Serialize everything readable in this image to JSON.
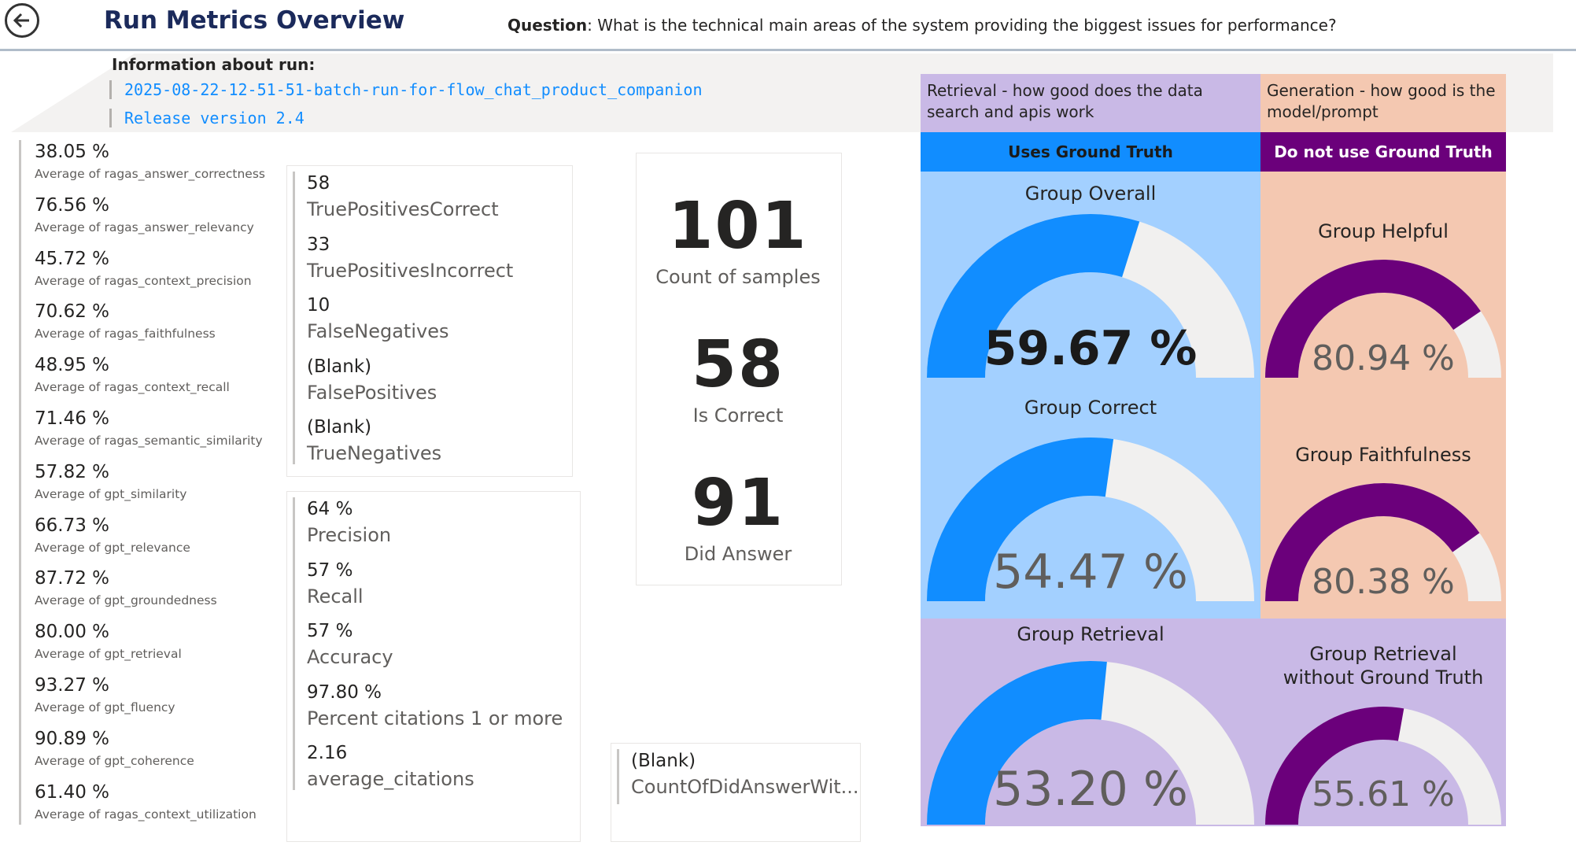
{
  "header": {
    "title": "Run Metrics Overview",
    "question_label": "Question",
    "question_text": ": What is the technical main areas of the system providing the biggest issues for performance?"
  },
  "info": {
    "title": "Information about run:",
    "run_name": "2025-08-22-12-51-51-batch-run-for-flow_chat_product_companion",
    "release": "Release version 2.4"
  },
  "left_metrics": [
    {
      "value": "38.05 %",
      "label": "Average of ragas_answer_correctness"
    },
    {
      "value": "76.56 %",
      "label": "Average of ragas_answer_relevancy"
    },
    {
      "value": "45.72 %",
      "label": "Average of ragas_context_precision"
    },
    {
      "value": "70.62 %",
      "label": "Average of ragas_faithfulness"
    },
    {
      "value": "48.95 %",
      "label": "Average of ragas_context_recall"
    },
    {
      "value": "71.46 %",
      "label": "Average of ragas_semantic_similarity"
    },
    {
      "value": "57.82 %",
      "label": "Average of gpt_similarity"
    },
    {
      "value": "66.73 %",
      "label": "Average of gpt_relevance"
    },
    {
      "value": "87.72 %",
      "label": "Average of gpt_groundedness"
    },
    {
      "value": "80.00 %",
      "label": "Average of gpt_retrieval"
    },
    {
      "value": "93.27 %",
      "label": "Average of gpt_fluency"
    },
    {
      "value": "90.89 %",
      "label": "Average of gpt_coherence"
    },
    {
      "value": "61.40 %",
      "label": "Average of ragas_context_utilization"
    }
  ],
  "confusion": [
    {
      "value": "58",
      "label": "TruePositivesCorrect"
    },
    {
      "value": "33",
      "label": "TruePositivesIncorrect"
    },
    {
      "value": "10",
      "label": "FalseNegatives"
    },
    {
      "value": "(Blank)",
      "label": "FalsePositives"
    },
    {
      "value": "(Blank)",
      "label": "TrueNegatives"
    }
  ],
  "rates": [
    {
      "value": "64 %",
      "label": "Precision"
    },
    {
      "value": "57 %",
      "label": "Recall"
    },
    {
      "value": "57 %",
      "label": "Accuracy"
    },
    {
      "value": "97.80 %",
      "label": "Percent citations 1 or more"
    },
    {
      "value": "2.16",
      "label": "average_citations"
    }
  ],
  "counts": [
    {
      "value": "101",
      "label": "Count of samples"
    },
    {
      "value": "58",
      "label": "Is Correct"
    },
    {
      "value": "91",
      "label": "Did Answer"
    }
  ],
  "blank_card": {
    "value": "(Blank)",
    "label": "CountOfDidAnswerWit..."
  },
  "sections": {
    "retrieval_header": "Retrieval - how good does the data search and apis work",
    "generation_header": "Generation - how good is the model/prompt",
    "uses_gt": "Uses Ground Truth",
    "no_gt": "Do not use Ground Truth"
  },
  "gauges": [
    {
      "title": "Group Overall",
      "value_text": "59.67 %",
      "value": 0.5967
    },
    {
      "title": "Group Helpful",
      "value_text": "80.94 %",
      "value": 0.8094
    },
    {
      "title": "Group Correct",
      "value_text": "54.47 %",
      "value": 0.5447
    },
    {
      "title": "Group Faithfulness",
      "value_text": "80.38 %",
      "value": 0.8038
    },
    {
      "title": "Group Retrieval",
      "value_text": "53.20 %",
      "value": 0.532
    },
    {
      "title": "Group Retrieval without Ground Truth",
      "value_text": "55.61 %",
      "value": 0.5561
    }
  ],
  "colors": {
    "blue_fill": "#118dff",
    "purple_fill": "#6b007b",
    "track": "#f1f0ef",
    "light_blue_bg": "#a3d0ff",
    "peach_bg": "#f4c8b1",
    "lavender_bg": "#c9b9e6"
  },
  "icons": {
    "back": "back-arrow-circle-icon"
  }
}
